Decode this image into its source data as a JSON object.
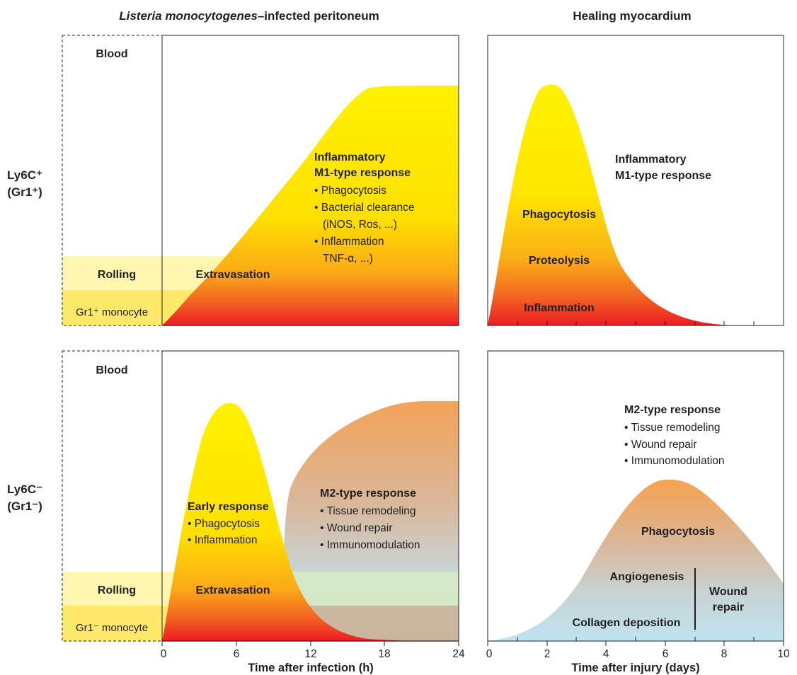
{
  "titles": {
    "left": {
      "italic": "Listeria monocytogenes",
      "rest": "–infected peritoneum"
    },
    "right": "Healing myocardium"
  },
  "row_labels": {
    "top": {
      "line1": "Ly6C⁺",
      "line2": "(Gr1⁺)"
    },
    "bottom": {
      "line1": "Ly6C⁻",
      "line2": "(Gr1⁻)"
    }
  },
  "peritoneum_top": {
    "blood": "Blood",
    "rolling": "Rolling",
    "extravasation": "Extravasation",
    "monocyte": "Gr1⁺ monocyte",
    "response_title": [
      "Inflammatory",
      "M1-type response"
    ],
    "response_items": [
      "• Phagocytosis",
      "• Bacterial clearance",
      "(iNOS, Ros, ...)",
      "• Inflammation",
      "TNF-α, ...)"
    ]
  },
  "peritoneum_bottom": {
    "blood": "Blood",
    "rolling": "Rolling",
    "extravasation": "Extravasation",
    "monocyte": "Gr1⁻ monocyte",
    "early_title": "Early response",
    "early_items": [
      "• Phagocytosis",
      "• Inflammation"
    ],
    "m2_title": "M2-type response",
    "m2_items": [
      "• Tissue remodeling",
      "• Wound repair",
      "• Immunomodulation"
    ]
  },
  "myocardium_top": {
    "response_title": [
      "Inflammatory",
      "M1-type response"
    ],
    "labels": [
      "Phagocytosis",
      "Proteolysis",
      "Inflammation"
    ]
  },
  "myocardium_bottom": {
    "m2_title": "M2-type response",
    "m2_items": [
      "• Tissue remodeling",
      "• Wound repair",
      "• Immunomodulation"
    ],
    "phagocytosis": "Phagocytosis",
    "angiogenesis": "Angiogenesis",
    "collagen": "Collagen deposition",
    "wound_repair": [
      "Wound",
      "repair"
    ]
  },
  "axes": {
    "infection": {
      "ticks": [
        "0",
        "6",
        "12",
        "18",
        "24"
      ],
      "label": "Time after infection (h)"
    },
    "injury": {
      "ticks": [
        "0",
        "2",
        "4",
        "6",
        "8",
        "10"
      ],
      "label": "Time after injury (days)"
    }
  },
  "colors": {
    "yellow": "#fff200",
    "orange": "#f7941d",
    "red": "#ed1c24",
    "tan": "#c9a78c",
    "light_blue": "#bfe3f0",
    "band_light": "#fff9c4",
    "band_mid": "#ffec7a"
  }
}
